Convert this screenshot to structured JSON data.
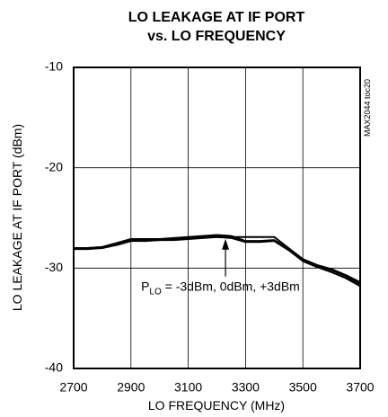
{
  "chart_data": {
    "type": "line",
    "title": "LO LEAKAGE AT IF PORT",
    "subtitle": "vs. LO FREQUENCY",
    "x_label": "LO FREQUENCY (MHz)",
    "y_label": "LO LEAKAGE AT IF PORT (dBm)",
    "side_note": "MAX2044 toc20",
    "annotation": {
      "p": "P",
      "sub": "LO",
      "rest": " = -3dBm, 0dBm, +3dBm",
      "x": 3230,
      "y": -26.9
    },
    "x": [
      2700,
      2750,
      2800,
      2850,
      2900,
      2950,
      3000,
      3050,
      3100,
      3150,
      3200,
      3250,
      3300,
      3350,
      3400,
      3450,
      3500,
      3550,
      3600,
      3650,
      3700
    ],
    "series": [
      {
        "color": "#000000",
        "values": [
          -28.0,
          -28.0,
          -27.9,
          -27.6,
          -27.2,
          -27.2,
          -27.2,
          -27.1,
          -27.0,
          -26.9,
          -26.8,
          -26.9,
          -26.9,
          -26.9,
          -26.9,
          -28.0,
          -29.1,
          -29.7,
          -30.1,
          -30.7,
          -31.4
        ]
      },
      {
        "color": "#000000",
        "values": [
          -28.0,
          -28.0,
          -27.9,
          -27.5,
          -27.1,
          -27.1,
          -27.1,
          -27.0,
          -26.9,
          -26.8,
          -26.7,
          -26.8,
          -27.3,
          -27.3,
          -27.2,
          -28.1,
          -29.2,
          -29.8,
          -30.2,
          -30.8,
          -31.6
        ]
      },
      {
        "color": "#000000",
        "values": [
          -28.1,
          -28.1,
          -28.0,
          -27.7,
          -27.3,
          -27.3,
          -27.2,
          -27.2,
          -27.1,
          -27.0,
          -26.9,
          -27.0,
          -27.4,
          -27.4,
          -27.3,
          -28.2,
          -29.3,
          -29.9,
          -30.4,
          -31.0,
          -31.8
        ]
      }
    ],
    "xlim": [
      2700,
      3700
    ],
    "xticks": [
      2700,
      2900,
      3100,
      3300,
      3500,
      3700
    ],
    "ylim": [
      -40,
      -10
    ],
    "yticks": [
      -40,
      -30,
      -20,
      -10
    ],
    "grid": true
  }
}
